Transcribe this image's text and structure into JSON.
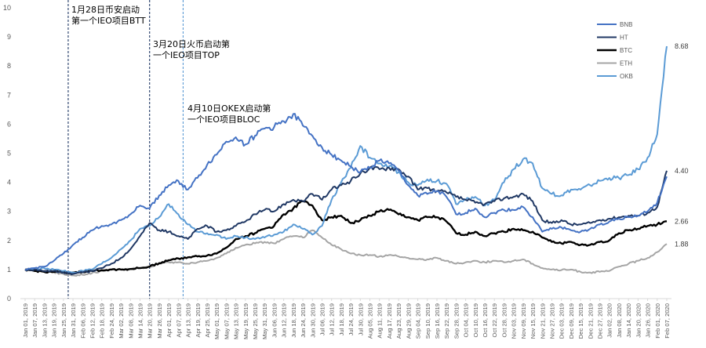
{
  "chart_data": {
    "type": "line",
    "ylim": [
      0,
      10
    ],
    "y_ticks": [
      "0",
      "1",
      "2",
      "3",
      "4",
      "5",
      "6",
      "7",
      "8",
      "9",
      "10"
    ],
    "x_tick_labels": [
      "Jan 01, 2019",
      "Jan 07, 2019",
      "Jan 13, 2019",
      "Jan 19, 2019",
      "Jan 25, 2019",
      "Jan 31, 2019",
      "Feb 06, 2019",
      "Feb 12, 2019",
      "Feb 18, 2019",
      "Feb 24, 2019",
      "Mar 02, 2019",
      "Mar 08, 2019",
      "Mar 14, 2019",
      "Mar 20, 2019",
      "Mar 26, 2019",
      "Apr 01, 2019",
      "Apr 07, 2019",
      "Apr 13, 2019",
      "Apr 19, 2019",
      "Apr 25, 2019",
      "May 01, 2019",
      "May 07, 2019",
      "May 13, 2019",
      "May 19, 2019",
      "May 25, 2019",
      "May 31, 2019",
      "Jun 06, 2019",
      "Jun 12, 2019",
      "Jun 18, 2019",
      "Jun 24, 2019",
      "Jun 30, 2019",
      "Jul 06, 2019",
      "Jul 12, 2019",
      "Jul 18, 2019",
      "Jul 24, 2019",
      "Jul 30, 2019",
      "Aug 05, 2019",
      "Aug 11, 2019",
      "Aug 17, 2019",
      "Aug 23, 2019",
      "Aug 29, 2019",
      "Sep 04, 2019",
      "Sep 10, 2019",
      "Sep 16, 2019",
      "Sep 22, 2019",
      "Sep 28, 2019",
      "Oct 04, 2019",
      "Oct 10, 2019",
      "Oct 16, 2019",
      "Oct 22, 2019",
      "Oct 28, 2019",
      "Nov 03, 2019",
      "Nov 09, 2019",
      "Nov 15, 2019",
      "Nov 21, 2019",
      "Nov 27, 2019",
      "Dec 03, 2019",
      "Dec 09, 2019",
      "Dec 15, 2019",
      "Dec 21, 2019",
      "Dec 27, 2019",
      "Jan 02, 2020",
      "Jan 08, 2020",
      "Jan 14, 2020",
      "Jan 20, 2020",
      "Jan 26, 2020",
      "Feb 01, 2020",
      "Feb 07, 2020"
    ],
    "tick_interval_days": 6,
    "grid": false,
    "legend_position": "top-right",
    "series": [
      {
        "name": "BNB",
        "color": "#4472C4",
        "width": 2,
        "end_label": "",
        "values": [
          1.0,
          1.05,
          1.1,
          1.3,
          1.55,
          1.85,
          2.1,
          2.35,
          2.5,
          2.55,
          2.7,
          2.9,
          3.2,
          3.1,
          3.55,
          3.9,
          4.05,
          3.75,
          4.15,
          4.6,
          4.95,
          5.4,
          5.55,
          5.3,
          5.6,
          5.85,
          5.9,
          6.1,
          6.35,
          5.95,
          5.6,
          5.2,
          4.95,
          4.75,
          4.55,
          4.35,
          4.5,
          4.75,
          4.65,
          4.4,
          3.9,
          3.55,
          3.6,
          3.7,
          3.5,
          2.9,
          2.95,
          3.1,
          2.8,
          2.95,
          3.05,
          3.05,
          3.15,
          2.8,
          2.3,
          2.4,
          2.45,
          2.35,
          2.3,
          2.4,
          2.55,
          2.65,
          2.75,
          2.8,
          2.85,
          3.0,
          3.3,
          4.2
        ]
      },
      {
        "name": "HT",
        "color": "#203864",
        "width": 2,
        "end_label": "4.40",
        "values": [
          1.0,
          1.0,
          0.95,
          0.95,
          0.9,
          0.85,
          0.9,
          0.95,
          1.05,
          1.2,
          1.4,
          1.7,
          2.15,
          2.6,
          2.35,
          2.3,
          2.15,
          2.05,
          2.4,
          2.5,
          2.3,
          2.35,
          2.5,
          2.65,
          2.9,
          3.05,
          3.0,
          3.25,
          3.4,
          3.35,
          3.6,
          3.4,
          3.75,
          3.9,
          4.05,
          4.3,
          4.5,
          4.45,
          4.5,
          4.45,
          4.2,
          3.75,
          3.8,
          3.7,
          3.65,
          3.5,
          3.4,
          3.3,
          3.25,
          3.35,
          3.45,
          3.5,
          3.6,
          3.35,
          2.7,
          2.6,
          2.7,
          2.55,
          2.55,
          2.6,
          2.7,
          2.75,
          2.8,
          2.85,
          2.85,
          2.95,
          3.15,
          4.4
        ]
      },
      {
        "name": "BTC",
        "color": "#000000",
        "width": 2.4,
        "end_label": "2.66",
        "values": [
          1.0,
          0.95,
          0.92,
          0.92,
          0.9,
          0.9,
          0.92,
          0.95,
          0.98,
          1.0,
          1.0,
          1.02,
          1.05,
          1.1,
          1.22,
          1.32,
          1.38,
          1.42,
          1.45,
          1.48,
          1.55,
          1.75,
          2.05,
          2.15,
          2.25,
          2.4,
          2.5,
          2.9,
          3.1,
          3.35,
          3.2,
          2.7,
          2.8,
          2.85,
          2.6,
          2.7,
          2.85,
          3.0,
          3.05,
          2.9,
          2.8,
          2.7,
          2.8,
          2.8,
          2.65,
          2.25,
          2.2,
          2.3,
          2.15,
          2.25,
          2.3,
          2.4,
          2.35,
          2.3,
          2.1,
          1.95,
          1.9,
          1.95,
          1.85,
          1.85,
          1.95,
          2.0,
          2.25,
          2.35,
          2.4,
          2.5,
          2.55,
          2.66
        ]
      },
      {
        "name": "ETH",
        "color": "#A5A5A5",
        "width": 2,
        "end_label": "1.88",
        "values": [
          1.0,
          1.0,
          0.95,
          0.9,
          0.85,
          0.8,
          0.82,
          0.88,
          0.95,
          1.0,
          1.0,
          1.02,
          1.05,
          1.1,
          1.2,
          1.25,
          1.25,
          1.2,
          1.25,
          1.3,
          1.4,
          1.55,
          1.75,
          1.85,
          1.9,
          1.95,
          1.9,
          2.05,
          2.15,
          2.1,
          2.35,
          2.1,
          1.85,
          1.7,
          1.55,
          1.5,
          1.5,
          1.45,
          1.5,
          1.45,
          1.4,
          1.35,
          1.35,
          1.4,
          1.3,
          1.2,
          1.25,
          1.3,
          1.25,
          1.3,
          1.25,
          1.3,
          1.35,
          1.2,
          1.05,
          1.0,
          0.98,
          1.0,
          0.92,
          0.9,
          0.92,
          0.95,
          1.1,
          1.2,
          1.3,
          1.4,
          1.6,
          1.88
        ]
      },
      {
        "name": "OKB",
        "color": "#5B9BD5",
        "width": 2,
        "end_label": "8.68",
        "values": [
          1.0,
          1.0,
          1.05,
          1.0,
          0.95,
          0.9,
          0.95,
          1.0,
          1.2,
          1.4,
          1.7,
          2.0,
          2.4,
          2.5,
          2.8,
          3.25,
          2.9,
          2.55,
          2.3,
          2.25,
          2.2,
          2.05,
          2.15,
          2.1,
          2.05,
          2.1,
          2.2,
          2.3,
          2.55,
          2.4,
          2.2,
          2.5,
          3.4,
          4.0,
          4.5,
          5.25,
          4.85,
          4.65,
          4.55,
          4.35,
          4.0,
          3.9,
          4.1,
          4.05,
          3.95,
          3.25,
          3.4,
          3.5,
          3.2,
          3.4,
          4.0,
          4.45,
          4.8,
          4.65,
          3.8,
          3.6,
          3.55,
          3.75,
          3.75,
          3.9,
          4.05,
          4.15,
          4.15,
          4.25,
          4.45,
          4.85,
          5.65,
          8.68
        ]
      }
    ],
    "annotations": [
      {
        "line1": "1月28日币安启动",
        "line2": "第一个IEO项目BTT",
        "x_index": 4.5,
        "style": "dashed-dark"
      },
      {
        "line1": "3月20日火币启动第",
        "line2": "一个IEO项目TOP",
        "x_index": 13,
        "style": "dashed-navy"
      },
      {
        "line1": "4月10日OKEX启动第",
        "line2": "一个IEO项目BLOC",
        "x_index": 16.5,
        "style": "dashed-light"
      }
    ]
  }
}
